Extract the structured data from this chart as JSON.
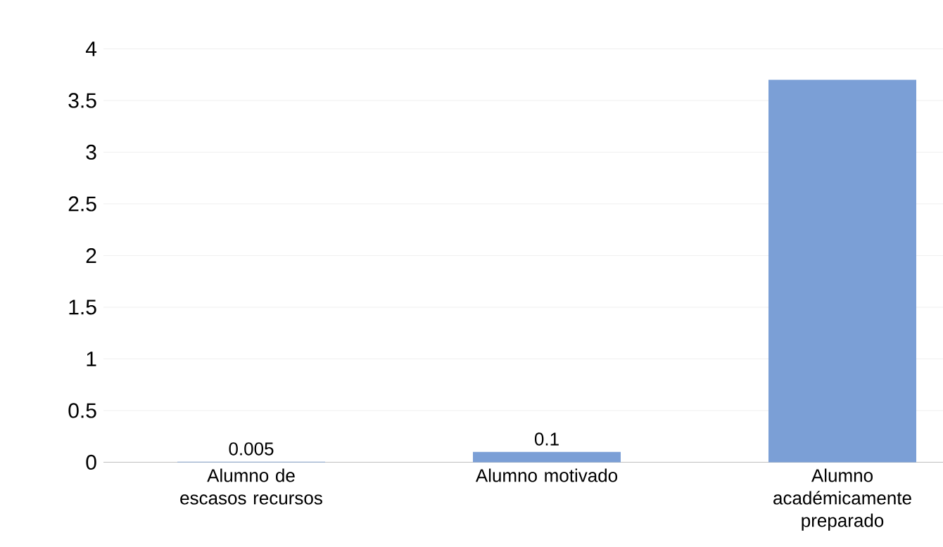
{
  "chart_data": {
    "type": "bar",
    "categories": [
      "Alumno de escasos recursos",
      "Alumno motivado",
      "Alumno académicamente preparado"
    ],
    "values": [
      0.005,
      0.1,
      3.7
    ],
    "value_labels": [
      "0.005",
      "0.1",
      null
    ],
    "color": "#7b9fd6",
    "ylim": [
      0,
      4
    ],
    "yticks": [
      0,
      0.5,
      1,
      1.5,
      2,
      2.5,
      3,
      3.5,
      4
    ],
    "grid": "y"
  }
}
